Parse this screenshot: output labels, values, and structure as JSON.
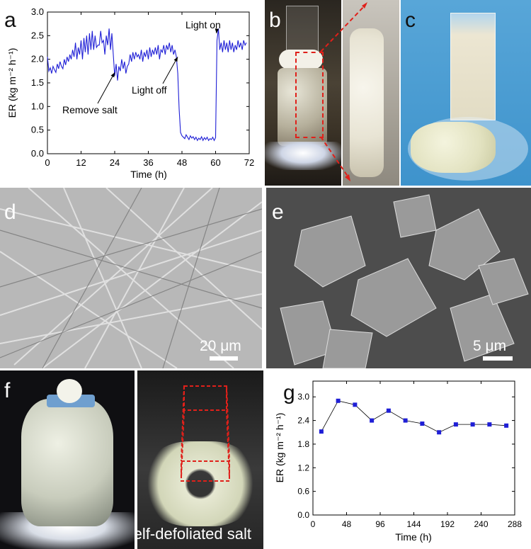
{
  "panels": {
    "a": "a",
    "b": "b",
    "c": "c",
    "d": "d",
    "e": "e",
    "f": "f",
    "g": "g"
  },
  "scale_d": "20 μm",
  "scale_e": "5 μm",
  "caption_f": "Self-defoliated salt",
  "colors": {
    "series": "#1f1fd6",
    "annotation_red": "#e0201a"
  },
  "chart_data": [
    {
      "id": "a",
      "type": "line",
      "xlabel": "Time (h)",
      "ylabel": "ER (kg m⁻² h⁻¹)",
      "xlim": [
        0,
        72
      ],
      "ylim": [
        0,
        3.0
      ],
      "xticks": [
        0,
        12,
        24,
        36,
        48,
        60,
        72
      ],
      "yticks": [
        0.0,
        0.5,
        1.0,
        1.5,
        2.0,
        2.5,
        3.0
      ],
      "annotations": [
        {
          "text": "Remove salt",
          "x": 24,
          "y": 1.72
        },
        {
          "text": "Light off",
          "x": 46.5,
          "y": 2.05
        },
        {
          "text": "Light on",
          "x": 60.3,
          "y": 2.55
        }
      ],
      "series": [
        {
          "x": [
            0,
            0.5,
            1,
            1.5,
            2,
            2.5,
            3,
            3.5,
            4,
            4.5,
            5,
            5.5,
            6,
            6.5,
            7,
            7.5,
            8,
            8.5,
            9,
            9.5,
            10,
            10.5,
            11,
            11.5,
            12,
            12.5,
            13,
            13.5,
            14,
            14.5,
            15,
            15.5,
            16,
            16.5,
            17,
            17.5,
            18,
            18.5,
            19,
            19.5,
            20,
            20.5,
            21,
            21.5,
            22,
            22.5,
            23,
            23.5,
            24,
            24.5,
            25,
            25.5,
            26,
            26.5,
            27,
            27.5,
            28,
            28.5,
            29,
            29.5,
            30,
            30.5,
            31,
            31.5,
            32,
            32.5,
            33,
            33.5,
            34,
            34.5,
            35,
            35.5,
            36,
            36.5,
            37,
            37.5,
            38,
            38.5,
            39,
            39.5,
            40,
            40.5,
            41,
            41.5,
            42,
            42.5,
            43,
            43.5,
            44,
            44.5,
            45,
            45.5,
            46,
            46.5,
            47,
            47.5,
            48,
            48.5,
            49,
            49.5,
            50,
            50.5,
            51,
            51.5,
            52,
            52.5,
            53,
            53.5,
            54,
            54.5,
            55,
            55.5,
            56,
            56.5,
            57,
            57.5,
            58,
            58.5,
            59,
            59.5,
            60,
            60.5,
            61,
            61.5,
            62,
            62.5,
            63,
            63.5,
            64,
            64.5,
            65,
            65.5,
            66,
            66.5,
            67,
            67.5,
            68,
            68.5,
            69,
            69.5,
            70,
            70.5,
            71
          ],
          "y": [
            2.05,
            1.75,
            1.82,
            1.7,
            1.85,
            1.78,
            1.72,
            1.9,
            1.8,
            1.95,
            1.85,
            1.8,
            2.0,
            1.88,
            2.05,
            1.95,
            2.1,
            2.0,
            2.2,
            2.05,
            2.35,
            2.0,
            2.25,
            2.1,
            2.4,
            2.0,
            2.45,
            2.15,
            2.5,
            2.1,
            2.55,
            2.2,
            2.6,
            2.2,
            2.5,
            2.25,
            2.3,
            2.3,
            2.6,
            2.35,
            2.4,
            2.1,
            2.5,
            2.3,
            2.65,
            2.2,
            2.55,
            2.1,
            1.65,
            1.9,
            1.55,
            1.85,
            1.75,
            2.0,
            1.8,
            1.95,
            1.7,
            1.85,
            1.9,
            2.1,
            1.95,
            2.15,
            2.0,
            2.15,
            2.05,
            2.1,
            2.0,
            2.2,
            1.95,
            2.15,
            2.05,
            2.2,
            2.0,
            2.25,
            2.05,
            2.2,
            2.1,
            2.25,
            2.1,
            2.3,
            2.0,
            2.2,
            2.15,
            2.3,
            2.1,
            2.3,
            2.2,
            2.35,
            2.15,
            2.3,
            2.1,
            2.2,
            2.05,
            1.7,
            0.95,
            0.45,
            0.38,
            0.35,
            0.32,
            0.4,
            0.35,
            0.3,
            0.38,
            0.33,
            0.36,
            0.3,
            0.35,
            0.28,
            0.33,
            0.3,
            0.36,
            0.28,
            0.34,
            0.3,
            0.35,
            0.28,
            0.32,
            0.3,
            0.35,
            0.28,
            0.34,
            2.4,
            2.65,
            2.2,
            2.35,
            2.15,
            2.4,
            2.2,
            2.35,
            2.15,
            2.4,
            2.2,
            2.35,
            2.15,
            2.3,
            2.2,
            2.4,
            2.25,
            2.35,
            2.2,
            2.4,
            2.3,
            2.35
          ]
        }
      ]
    },
    {
      "id": "g",
      "type": "line",
      "xlabel": "Time (h)",
      "ylabel": "ER (kg m⁻² h⁻¹)",
      "xlim": [
        0,
        288
      ],
      "ylim": [
        0,
        3.4
      ],
      "xticks": [
        0,
        48,
        96,
        144,
        192,
        240,
        288
      ],
      "yticks": [
        0.0,
        0.6,
        1.2,
        1.8,
        2.4,
        3.0
      ],
      "series": [
        {
          "x": [
            12,
            36,
            60,
            84,
            108,
            132,
            156,
            180,
            204,
            228,
            252,
            276
          ],
          "y": [
            2.12,
            2.9,
            2.8,
            2.4,
            2.65,
            2.4,
            2.32,
            2.1,
            2.3,
            2.3,
            2.3,
            2.27
          ]
        }
      ]
    }
  ]
}
